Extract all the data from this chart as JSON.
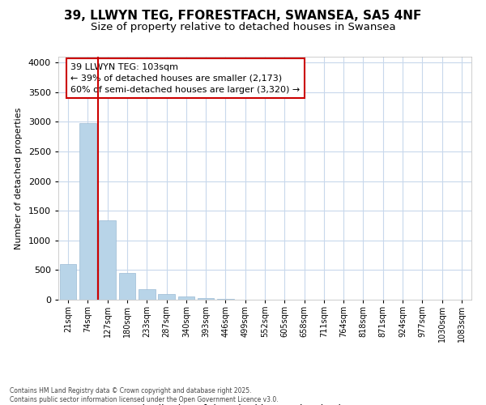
{
  "title1": "39, LLWYN TEG, FFORESTFACH, SWANSEA, SA5 4NF",
  "title2": "Size of property relative to detached houses in Swansea",
  "xlabel": "Distribution of detached houses by size in Swansea",
  "ylabel": "Number of detached properties",
  "categories": [
    "21sqm",
    "74sqm",
    "127sqm",
    "180sqm",
    "233sqm",
    "287sqm",
    "340sqm",
    "393sqm",
    "446sqm",
    "499sqm",
    "552sqm",
    "605sqm",
    "658sqm",
    "711sqm",
    "764sqm",
    "818sqm",
    "871sqm",
    "924sqm",
    "977sqm",
    "1030sqm",
    "1083sqm"
  ],
  "values": [
    600,
    2980,
    1340,
    450,
    175,
    100,
    50,
    30,
    10,
    5,
    0,
    0,
    0,
    0,
    0,
    0,
    0,
    0,
    0,
    0,
    0
  ],
  "bar_color": "#b8d4e8",
  "bar_edge_color": "#9bbbd4",
  "vline_color": "#cc0000",
  "vline_pos": 1.5,
  "annotation_text": "39 LLWYN TEG: 103sqm\n← 39% of detached houses are smaller (2,173)\n60% of semi-detached houses are larger (3,320) →",
  "grid_color": "#c8d8ec",
  "bg_color": "#ffffff",
  "plot_bg_color": "#ffffff",
  "footer": "Contains HM Land Registry data © Crown copyright and database right 2025.\nContains public sector information licensed under the Open Government Licence v3.0.",
  "ylim_max": 4100,
  "yticks": [
    0,
    500,
    1000,
    1500,
    2000,
    2500,
    3000,
    3500,
    4000
  ],
  "title_fontsize": 11,
  "subtitle_fontsize": 9.5,
  "tick_fontsize": 7,
  "ylabel_fontsize": 8,
  "xlabel_fontsize": 9,
  "ann_fontsize": 8
}
